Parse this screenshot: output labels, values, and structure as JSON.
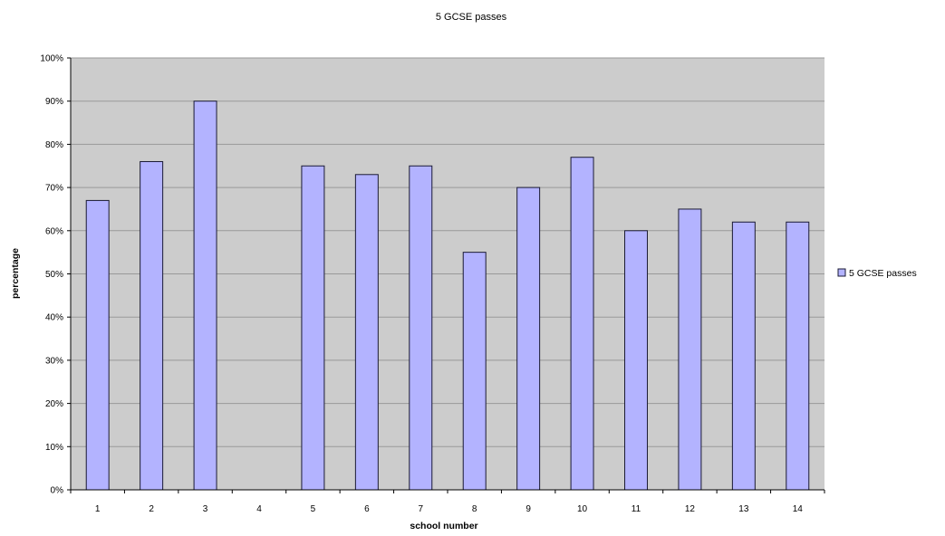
{
  "chart_data": {
    "type": "bar",
    "title": "5 GCSE passes",
    "xlabel": "school number",
    "ylabel": "percentage",
    "categories": [
      "1",
      "2",
      "3",
      "4",
      "5",
      "6",
      "7",
      "8",
      "9",
      "10",
      "11",
      "12",
      "13",
      "14"
    ],
    "series": [
      {
        "name": "5 GCSE passes",
        "values": [
          67,
          76,
          90,
          null,
          75,
          73,
          75,
          55,
          70,
          77,
          60,
          65,
          62,
          62
        ]
      }
    ],
    "ylim": [
      0,
      100
    ],
    "yticks": [
      "0%",
      "10%",
      "20%",
      "30%",
      "40%",
      "50%",
      "60%",
      "70%",
      "80%",
      "90%",
      "100%"
    ],
    "grid": true,
    "legend_position": "right",
    "colors": {
      "bar_fill": "#b3b3ff",
      "bar_stroke": "#1a1a33",
      "plot_background": "#cccccc",
      "gridline": "#999999"
    }
  }
}
